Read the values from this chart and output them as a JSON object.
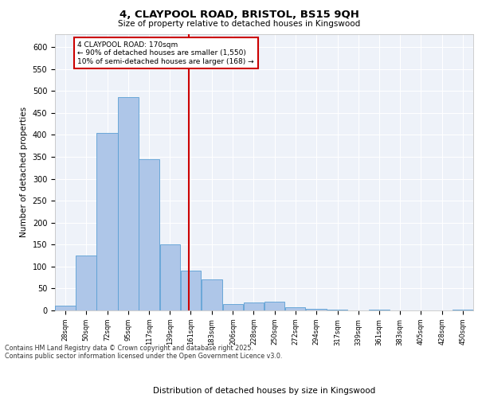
{
  "title_line1": "4, CLAYPOOL ROAD, BRISTOL, BS15 9QH",
  "title_line2": "Size of property relative to detached houses in Kingswood",
  "xlabel": "Distribution of detached houses by size in Kingswood",
  "ylabel": "Number of detached properties",
  "annotation_line1": "4 CLAYPOOL ROAD: 170sqm",
  "annotation_line2": "← 90% of detached houses are smaller (1,550)",
  "annotation_line3": "10% of semi-detached houses are larger (168) →",
  "vline_x": 170,
  "bin_edges": [
    28,
    50,
    72,
    95,
    117,
    139,
    161,
    183,
    206,
    228,
    250,
    272,
    294,
    317,
    339,
    361,
    383,
    405,
    428,
    450,
    472
  ],
  "bar_heights": [
    10,
    125,
    405,
    485,
    345,
    150,
    90,
    70,
    15,
    18,
    20,
    8,
    3,
    1,
    0,
    1,
    0,
    0,
    0,
    1
  ],
  "bar_color": "#aec6e8",
  "bar_edge_color": "#5a9fd4",
  "vline_color": "#cc0000",
  "background_color": "#eef2f9",
  "grid_color": "#ffffff",
  "footer_line1": "Contains HM Land Registry data © Crown copyright and database right 2025.",
  "footer_line2": "Contains public sector information licensed under the Open Government Licence v3.0.",
  "ylim": [
    0,
    630
  ],
  "yticks": [
    0,
    50,
    100,
    150,
    200,
    250,
    300,
    350,
    400,
    450,
    500,
    550,
    600
  ]
}
